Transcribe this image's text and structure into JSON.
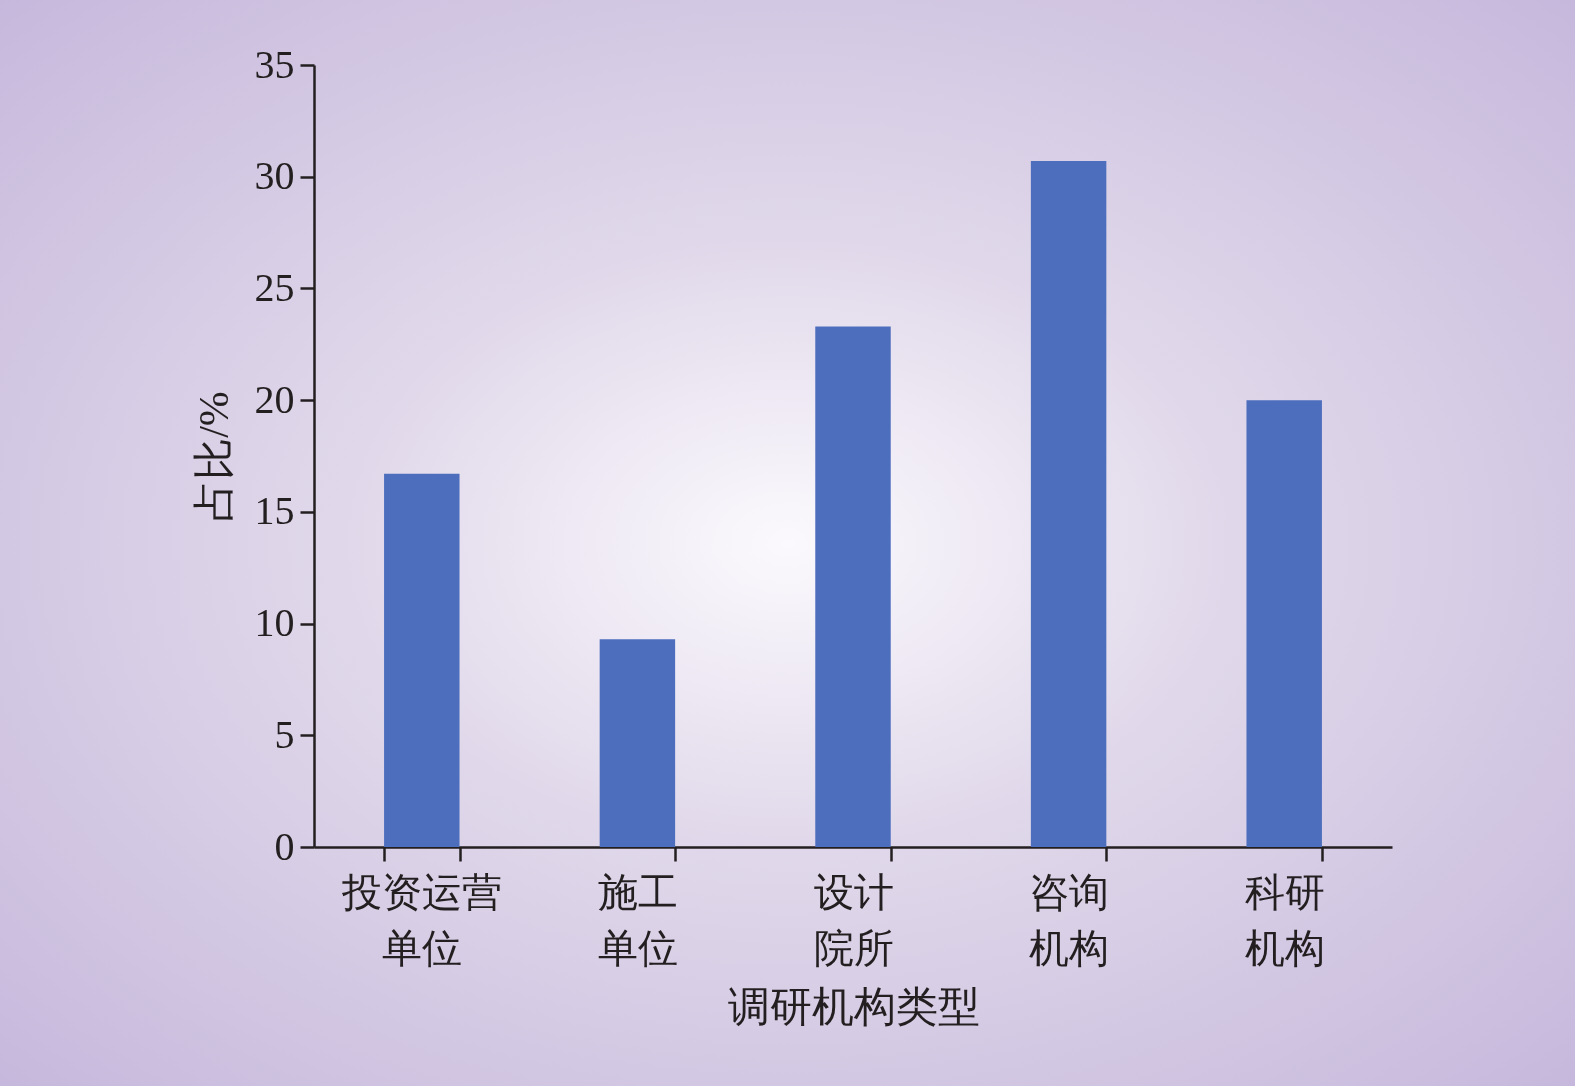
{
  "chart_data": {
    "type": "bar",
    "xlabel": "调研机构类型",
    "ylabel": "占比/%",
    "categories": [
      "投资运营单位",
      "施工单位",
      "设计院所",
      "咨询机构",
      "科研机构"
    ],
    "values": [
      16.7,
      9.3,
      23.3,
      30.7,
      20.0
    ],
    "color": "#4d6ebd",
    "ylim": [
      0,
      35
    ],
    "yticks": [
      0,
      5,
      10,
      15,
      20,
      25,
      30,
      35
    ],
    "grid": false,
    "legend": false
  }
}
